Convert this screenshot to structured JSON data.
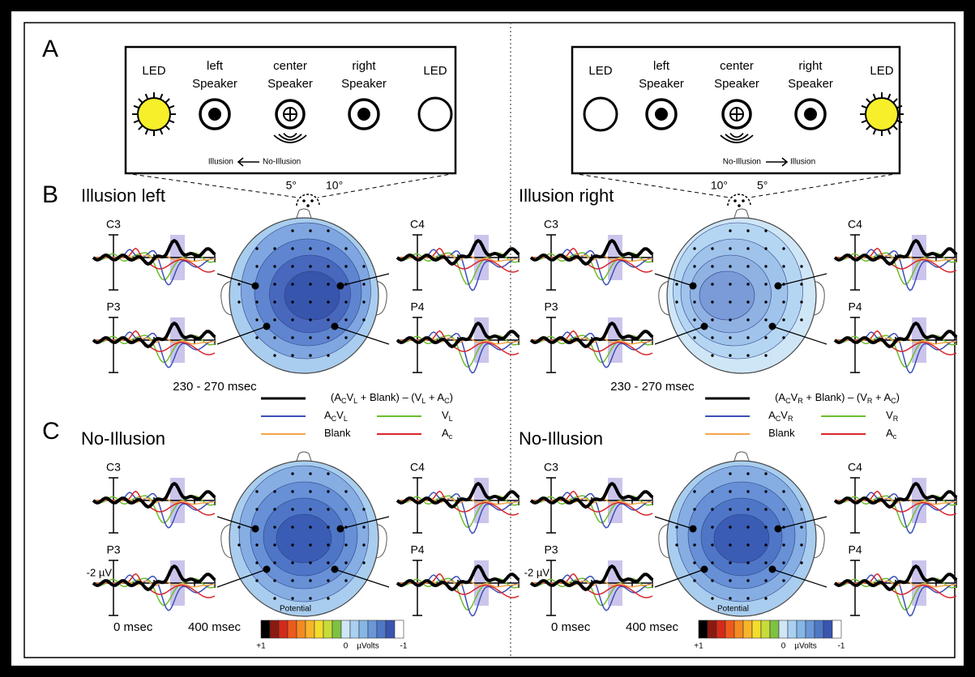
{
  "panel_labels": [
    "A",
    "B",
    "C"
  ],
  "setups": [
    {
      "items": [
        {
          "top": "LED",
          "lit": true
        },
        {
          "top": "left",
          "bottom": "Speaker"
        },
        {
          "top": "center",
          "bottom": "Speaker"
        },
        {
          "top": "right",
          "bottom": "Speaker"
        },
        {
          "top": "LED"
        }
      ],
      "arrow": [
        "Illusion",
        "No-Illusion"
      ],
      "arrow_points": "left",
      "angles": [
        "5°",
        "10°"
      ]
    },
    {
      "items": [
        {
          "top": "LED"
        },
        {
          "top": "left",
          "bottom": "Speaker"
        },
        {
          "top": "center",
          "bottom": "Speaker"
        },
        {
          "top": "right",
          "bottom": "Speaker"
        },
        {
          "top": "LED",
          "lit": true
        }
      ],
      "arrow": [
        "No-Illusion",
        "Illusion"
      ],
      "arrow_points": "right",
      "angles": [
        "10°",
        "5°"
      ]
    }
  ],
  "halves": [
    {
      "conditions": [
        "Illusion left",
        "No-Illusion"
      ],
      "legend": [
        {
          "color": "#000000",
          "parts": [
            {
              "t": "(A"
            },
            {
              "t": "C",
              "sub": true
            },
            {
              "t": "V"
            },
            {
              "t": "L",
              "sub": true
            },
            {
              "t": " + Blank) – (V"
            },
            {
              "t": "L",
              "sub": true
            },
            {
              "t": " + A"
            },
            {
              "t": "C",
              "sub": true
            },
            {
              "t": ")"
            }
          ]
        },
        {
          "color": "#3b4fb8",
          "parts": [
            {
              "t": "A"
            },
            {
              "t": "C",
              "sub": true
            },
            {
              "t": "V"
            },
            {
              "t": "L",
              "sub": true
            }
          ]
        },
        {
          "color": "#6cbd2c",
          "parts": [
            {
              "t": "V"
            },
            {
              "t": "L",
              "sub": true
            }
          ]
        },
        {
          "color": "#f5a54a",
          "parts": [
            {
              "t": "Blank"
            }
          ]
        },
        {
          "color": "#d8262b",
          "parts": [
            {
              "t": "A"
            },
            {
              "t": "c",
              "sub": true
            }
          ]
        }
      ]
    },
    {
      "conditions": [
        "Illusion right",
        "No-Illusion"
      ],
      "legend": [
        {
          "color": "#000000",
          "parts": [
            {
              "t": "(A"
            },
            {
              "t": "C",
              "sub": true
            },
            {
              "t": "V"
            },
            {
              "t": "R",
              "sub": true
            },
            {
              "t": " + Blank) – (V"
            },
            {
              "t": "R",
              "sub": true
            },
            {
              "t": " + A"
            },
            {
              "t": "C",
              "sub": true
            },
            {
              "t": ")"
            }
          ]
        },
        {
          "color": "#3b4fb8",
          "parts": [
            {
              "t": "A"
            },
            {
              "t": "C",
              "sub": true
            },
            {
              "t": "V"
            },
            {
              "t": "R",
              "sub": true
            }
          ]
        },
        {
          "color": "#6cbd2c",
          "parts": [
            {
              "t": "V"
            },
            {
              "t": "R",
              "sub": true
            }
          ]
        },
        {
          "color": "#f5a54a",
          "parts": [
            {
              "t": "Blank"
            }
          ]
        },
        {
          "color": "#d8262b",
          "parts": [
            {
              "t": "A"
            },
            {
              "t": "c",
              "sub": true
            }
          ]
        }
      ]
    }
  ],
  "electrodes": [
    "C3",
    "C4",
    "P3",
    "P4"
  ],
  "time_window": "230 - 270 msec",
  "scale": {
    "amplitude": "-2 µV",
    "start": "0 msec",
    "end": "400 msec"
  },
  "colorbar": {
    "title": "Potential",
    "labels": [
      "+1",
      "0",
      "µVolts",
      "-1"
    ],
    "colors": [
      "#000000",
      "#8b1a10",
      "#d42a1a",
      "#ee5a1e",
      "#f58a22",
      "#f7b52a",
      "#f4dc2c",
      "#c7dc3a",
      "#7fc241",
      "#cfe6f7",
      "#a9d0f0",
      "#86b6e6",
      "#6b97d8",
      "#4f78c6",
      "#3855b0",
      "#ffffff"
    ]
  }
}
